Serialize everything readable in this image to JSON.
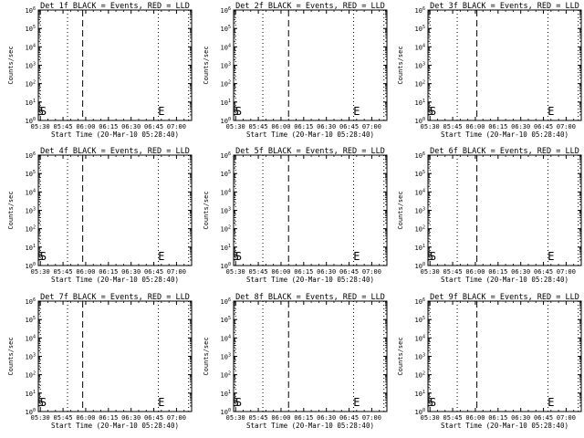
{
  "figure": {
    "background": "#ffffff",
    "foreground": "#000000"
  },
  "chart_data": [
    {
      "type": "line",
      "title": "Det 1f BLACK = Events, RED = LLD",
      "xlabel": "Start Time (20-Mar-10 05:28:40)",
      "ylabel": "Counts/sec",
      "x_ticks": [
        "05:30",
        "05:45",
        "06:00",
        "06:15",
        "06:30",
        "06:45",
        "07:00"
      ],
      "y_ticks": [
        "10^0",
        "10^1",
        "10^2",
        "10^3",
        "10^4",
        "10^5",
        "10^6"
      ],
      "xlim": [
        "05:28:40",
        "07:10"
      ],
      "ylim": [
        1,
        1000000
      ],
      "y_scale": "log",
      "dotted_lines_x": [
        "05:30",
        "05:48",
        "06:48",
        "07:08"
      ],
      "dashed_lines_x": [
        "05:58"
      ],
      "markers": [
        {
          "label": "S",
          "x": "05:30"
        },
        {
          "label": "S",
          "x": "05:32"
        },
        {
          "label": "E",
          "x": "06:50"
        }
      ],
      "series": []
    },
    {
      "type": "line",
      "title": "Det 2f BLACK = Events, RED = LLD",
      "xlabel": "Start Time (20-Mar-10 05:28:40)",
      "ylabel": "Counts/sec",
      "x_ticks": [
        "05:30",
        "05:45",
        "06:00",
        "06:15",
        "06:30",
        "06:45",
        "07:00"
      ],
      "y_ticks": [
        "10^0",
        "10^1",
        "10^2",
        "10^3",
        "10^4",
        "10^5",
        "10^6"
      ],
      "xlim": [
        "05:28:40",
        "07:10"
      ],
      "ylim": [
        1,
        1000000
      ],
      "y_scale": "log",
      "dotted_lines_x": [
        "05:30",
        "05:48",
        "06:48",
        "07:08"
      ],
      "dashed_lines_x": [
        "06:05"
      ],
      "markers": [
        {
          "label": "S",
          "x": "05:30"
        },
        {
          "label": "S",
          "x": "05:32"
        },
        {
          "label": "E",
          "x": "06:50"
        }
      ],
      "series": []
    },
    {
      "type": "line",
      "title": "Det 3f BLACK = Events, RED = LLD",
      "xlabel": "Start Time (20-Mar-10 05:28:40)",
      "ylabel": "Counts/sec",
      "x_ticks": [
        "05:30",
        "05:45",
        "06:00",
        "06:15",
        "06:30",
        "06:45",
        "07:00"
      ],
      "y_ticks": [
        "10^0",
        "10^1",
        "10^2",
        "10^3",
        "10^4",
        "10^5",
        "10^6"
      ],
      "xlim": [
        "05:28:40",
        "07:10"
      ],
      "ylim": [
        1,
        1000000
      ],
      "y_scale": "log",
      "dotted_lines_x": [
        "05:30",
        "05:48",
        "06:48",
        "07:08"
      ],
      "dashed_lines_x": [
        "06:01"
      ],
      "markers": [
        {
          "label": "S",
          "x": "05:30"
        },
        {
          "label": "S",
          "x": "05:32"
        },
        {
          "label": "E",
          "x": "06:50"
        }
      ],
      "series": []
    },
    {
      "type": "line",
      "title": "Det 4f BLACK = Events, RED = LLD",
      "xlabel": "Start Time (20-Mar-10 05:28:40)",
      "ylabel": "Counts/sec",
      "x_ticks": [
        "05:30",
        "05:45",
        "06:00",
        "06:15",
        "06:30",
        "06:45",
        "07:00"
      ],
      "y_ticks": [
        "10^0",
        "10^1",
        "10^2",
        "10^3",
        "10^4",
        "10^5",
        "10^6"
      ],
      "xlim": [
        "05:28:40",
        "07:10"
      ],
      "ylim": [
        1,
        1000000
      ],
      "y_scale": "log",
      "dotted_lines_x": [
        "05:30",
        "05:48",
        "06:48",
        "07:08"
      ],
      "dashed_lines_x": [
        "05:58"
      ],
      "markers": [
        {
          "label": "S",
          "x": "05:30"
        },
        {
          "label": "S",
          "x": "05:32"
        },
        {
          "label": "E",
          "x": "06:50"
        }
      ],
      "series": []
    },
    {
      "type": "line",
      "title": "Det 5f BLACK = Events, RED = LLD",
      "xlabel": "Start Time (20-Mar-10 05:28:40)",
      "ylabel": "Counts/sec",
      "x_ticks": [
        "05:30",
        "05:45",
        "06:00",
        "06:15",
        "06:30",
        "06:45",
        "07:00"
      ],
      "y_ticks": [
        "10^0",
        "10^1",
        "10^2",
        "10^3",
        "10^4",
        "10^5",
        "10^6"
      ],
      "xlim": [
        "05:28:40",
        "07:10"
      ],
      "ylim": [
        1,
        1000000
      ],
      "y_scale": "log",
      "dotted_lines_x": [
        "05:30",
        "05:48",
        "06:48",
        "07:08"
      ],
      "dashed_lines_x": [
        "06:05"
      ],
      "markers": [
        {
          "label": "S",
          "x": "05:30"
        },
        {
          "label": "S",
          "x": "05:32"
        },
        {
          "label": "E",
          "x": "06:50"
        }
      ],
      "series": []
    },
    {
      "type": "line",
      "title": "Det 6f BLACK = Events, RED = LLD",
      "xlabel": "Start Time (20-Mar-10 05:28:40)",
      "ylabel": "Counts/sec",
      "x_ticks": [
        "05:30",
        "05:45",
        "06:00",
        "06:15",
        "06:30",
        "06:45",
        "07:00"
      ],
      "y_ticks": [
        "10^0",
        "10^1",
        "10^2",
        "10^3",
        "10^4",
        "10^5",
        "10^6"
      ],
      "xlim": [
        "05:28:40",
        "07:10"
      ],
      "ylim": [
        1,
        1000000
      ],
      "y_scale": "log",
      "dotted_lines_x": [
        "05:30",
        "05:48",
        "06:48",
        "07:08"
      ],
      "dashed_lines_x": [
        "06:01"
      ],
      "markers": [
        {
          "label": "S",
          "x": "05:30"
        },
        {
          "label": "S",
          "x": "05:32"
        },
        {
          "label": "E",
          "x": "06:50"
        }
      ],
      "series": []
    },
    {
      "type": "line",
      "title": "Det 7f BLACK = Events, RED = LLD",
      "xlabel": "Start Time (20-Mar-10 05:28:40)",
      "ylabel": "Counts/sec",
      "x_ticks": [
        "05:30",
        "05:45",
        "06:00",
        "06:15",
        "06:30",
        "06:45",
        "07:00"
      ],
      "y_ticks": [
        "10^0",
        "10^1",
        "10^2",
        "10^3",
        "10^4",
        "10^5",
        "10^6"
      ],
      "xlim": [
        "05:28:40",
        "07:10"
      ],
      "ylim": [
        1,
        1000000
      ],
      "y_scale": "log",
      "dotted_lines_x": [
        "05:30",
        "05:48",
        "06:48",
        "07:08"
      ],
      "dashed_lines_x": [
        "05:58"
      ],
      "markers": [
        {
          "label": "S",
          "x": "05:30"
        },
        {
          "label": "S",
          "x": "05:32"
        },
        {
          "label": "E",
          "x": "06:50"
        }
      ],
      "series": []
    },
    {
      "type": "line",
      "title": "Det 8f BLACK = Events, RED = LLD",
      "xlabel": "Start Time (20-Mar-10 05:28:40)",
      "ylabel": "Counts/sec",
      "x_ticks": [
        "05:30",
        "05:45",
        "06:00",
        "06:15",
        "06:30",
        "06:45",
        "07:00"
      ],
      "y_ticks": [
        "10^0",
        "10^1",
        "10^2",
        "10^3",
        "10^4",
        "10^5",
        "10^6"
      ],
      "xlim": [
        "05:28:40",
        "07:10"
      ],
      "ylim": [
        1,
        1000000
      ],
      "y_scale": "log",
      "dotted_lines_x": [
        "05:30",
        "05:48",
        "06:48",
        "07:08"
      ],
      "dashed_lines_x": [
        "06:05"
      ],
      "markers": [
        {
          "label": "S",
          "x": "05:30"
        },
        {
          "label": "S",
          "x": "05:32"
        },
        {
          "label": "E",
          "x": "06:50"
        }
      ],
      "series": []
    },
    {
      "type": "line",
      "title": "Det 9f BLACK = Events, RED = LLD",
      "xlabel": "Start Time (20-Mar-10 05:28:40)",
      "ylabel": "Counts/sec",
      "x_ticks": [
        "05:30",
        "05:45",
        "06:00",
        "06:15",
        "06:30",
        "06:45",
        "07:00"
      ],
      "y_ticks": [
        "10^0",
        "10^1",
        "10^2",
        "10^3",
        "10^4",
        "10^5",
        "10^6"
      ],
      "xlim": [
        "05:28:40",
        "07:10"
      ],
      "ylim": [
        1,
        1000000
      ],
      "y_scale": "log",
      "dotted_lines_x": [
        "05:30",
        "05:48",
        "06:48",
        "07:08"
      ],
      "dashed_lines_x": [
        "06:01"
      ],
      "markers": [
        {
          "label": "S",
          "x": "05:30"
        },
        {
          "label": "S",
          "x": "05:32"
        },
        {
          "label": "E",
          "x": "06:50"
        }
      ],
      "series": []
    }
  ]
}
